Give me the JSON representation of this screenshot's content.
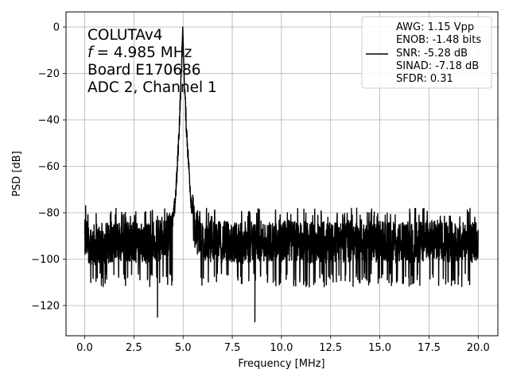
{
  "chart_data": {
    "type": "line",
    "xlabel": "Frequency [MHz]",
    "ylabel": "PSD [dB]",
    "xlim": [
      -0.95,
      21.0
    ],
    "ylim": [
      -133.0,
      6.5
    ],
    "xticks": [
      0.0,
      2.5,
      5.0,
      7.5,
      10.0,
      12.5,
      15.0,
      17.5,
      20.0
    ],
    "xtick_labels": [
      "0.0",
      "2.5",
      "5.0",
      "7.5",
      "10.0",
      "12.5",
      "15.0",
      "17.5",
      "20.0"
    ],
    "yticks": [
      0,
      -20,
      -40,
      -60,
      -80,
      -100,
      -120
    ],
    "ytick_labels": [
      "0",
      "−20",
      "−40",
      "−60",
      "−80",
      "−100",
      "−120"
    ],
    "grid": true,
    "annotation_lines": [
      "COLUTAv4",
      "= 4.985 MHz",
      "Board E170686",
      "ADC 2, Channel 1"
    ],
    "annotation_italic_prefix": "f",
    "legend": {
      "placement": "top-right",
      "entries": [
        "AWG: 1.15 Vpp",
        "ENOB: -1.48 bits",
        "SNR: -5.28 dB",
        "SINAD: -7.18 dB",
        "SFDR: 0.31"
      ]
    },
    "series": [
      {
        "color": "#000000",
        "peak": {
          "x": 4.985,
          "y": 0
        },
        "envelope": {
          "x": [
            0.0,
            0.5,
            1.0,
            2.0,
            3.0,
            4.0,
            4.3,
            4.5,
            4.6,
            4.7,
            4.8,
            4.9,
            4.985,
            5.05,
            5.15,
            5.25,
            5.4,
            5.6,
            6.0,
            8.0,
            10.0,
            12.0,
            14.0,
            16.0,
            18.0,
            20.0
          ],
          "y": [
            -92,
            -94,
            -93,
            -92,
            -93,
            -92,
            -89,
            -83,
            -75,
            -62,
            -44,
            -22,
            0,
            -20,
            -40,
            -55,
            -74,
            -88,
            -92,
            -93,
            -92,
            -93,
            -92,
            -93,
            -92,
            -93
          ]
        },
        "noise_band": {
          "upper": -82,
          "lower": -112
        },
        "notable_points": [
          {
            "x": 0.05,
            "y": -77
          },
          {
            "x": 3.7,
            "y": -125
          },
          {
            "x": 8.65,
            "y": -127
          },
          {
            "x": 10.3,
            "y": -80
          }
        ]
      }
    ]
  }
}
